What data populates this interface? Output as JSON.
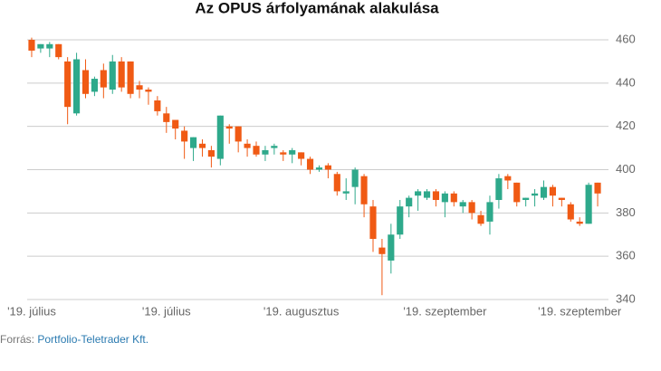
{
  "chart_data": {
    "type": "candlestick",
    "title": "Az OPUS árfolyamának alakulása",
    "categories": [
      "'19. július",
      null,
      null,
      null,
      null,
      null,
      null,
      null,
      null,
      null,
      null,
      null,
      null,
      null,
      null,
      "'19. július",
      null,
      null,
      null,
      null,
      null,
      null,
      null,
      null,
      null,
      null,
      null,
      null,
      null,
      null,
      "'19. augusztus",
      null,
      null,
      null,
      null,
      null,
      null,
      null,
      null,
      null,
      null,
      null,
      null,
      null,
      null,
      null,
      "'19. szeptember",
      null,
      null,
      null,
      null,
      null,
      null,
      null,
      null,
      null,
      null,
      null,
      null,
      null,
      null,
      "'19. szeptember",
      null,
      null
    ],
    "open": [
      460,
      456,
      456,
      458,
      450,
      426,
      446,
      436,
      446,
      437,
      450,
      450,
      439,
      437,
      432,
      426,
      423,
      418,
      410,
      412,
      409,
      405,
      420,
      420,
      412,
      411,
      407,
      410,
      408,
      407,
      408,
      405,
      400,
      402,
      398,
      389,
      392,
      397,
      383,
      364,
      358,
      370,
      383,
      388,
      387,
      390,
      385,
      389,
      383,
      385,
      379,
      376,
      386,
      397,
      394,
      386,
      388,
      387,
      392,
      387,
      384,
      376,
      375,
      394
    ],
    "high": [
      461,
      458,
      459,
      458,
      452,
      454,
      451,
      443,
      449,
      453,
      452,
      450,
      441,
      438,
      434,
      429,
      423,
      420,
      415,
      414,
      411,
      425,
      421,
      420,
      414,
      413,
      411,
      412,
      409,
      410,
      408,
      406,
      402,
      403,
      399,
      396,
      401,
      398,
      386,
      368,
      375,
      386,
      388,
      391,
      391,
      391,
      390,
      390,
      386,
      386,
      381,
      388,
      398,
      398,
      394,
      387,
      391,
      395,
      393,
      387,
      385,
      378,
      394,
      394
    ],
    "low": [
      452,
      454,
      452,
      451,
      421,
      425,
      433,
      434,
      433,
      435,
      436,
      433,
      433,
      430,
      425,
      417,
      414,
      405,
      404,
      406,
      401,
      402,
      412,
      408,
      406,
      406,
      404,
      407,
      404,
      403,
      402,
      398,
      399,
      396,
      388,
      386,
      384,
      378,
      362,
      342,
      352,
      368,
      378,
      381,
      386,
      383,
      378,
      383,
      380,
      377,
      374,
      370,
      382,
      391,
      383,
      383,
      383,
      386,
      383,
      383,
      376,
      374,
      375,
      383
    ],
    "close": [
      455,
      458,
      458,
      452,
      429,
      451,
      435,
      442,
      438,
      450,
      438,
      435,
      437,
      436,
      427,
      422,
      419,
      413,
      415,
      410,
      406,
      425,
      419,
      413,
      410,
      407,
      409,
      411,
      407,
      409,
      405,
      400,
      401,
      400,
      390,
      390,
      400,
      384,
      368,
      361,
      370,
      383,
      387,
      390,
      390,
      386,
      389,
      385,
      385,
      380,
      375,
      385,
      396,
      395,
      385,
      387,
      389,
      392,
      388,
      386,
      377,
      375,
      393,
      389
    ],
    "up_color": "#2ea98b",
    "down_color": "#f05a14",
    "ylim": [
      340,
      460
    ],
    "yticks": [
      340,
      360,
      380,
      400,
      420,
      440,
      460
    ],
    "grid": true,
    "source_label": "Forrás:",
    "source": "Portfolio-Teletrader Kft."
  }
}
